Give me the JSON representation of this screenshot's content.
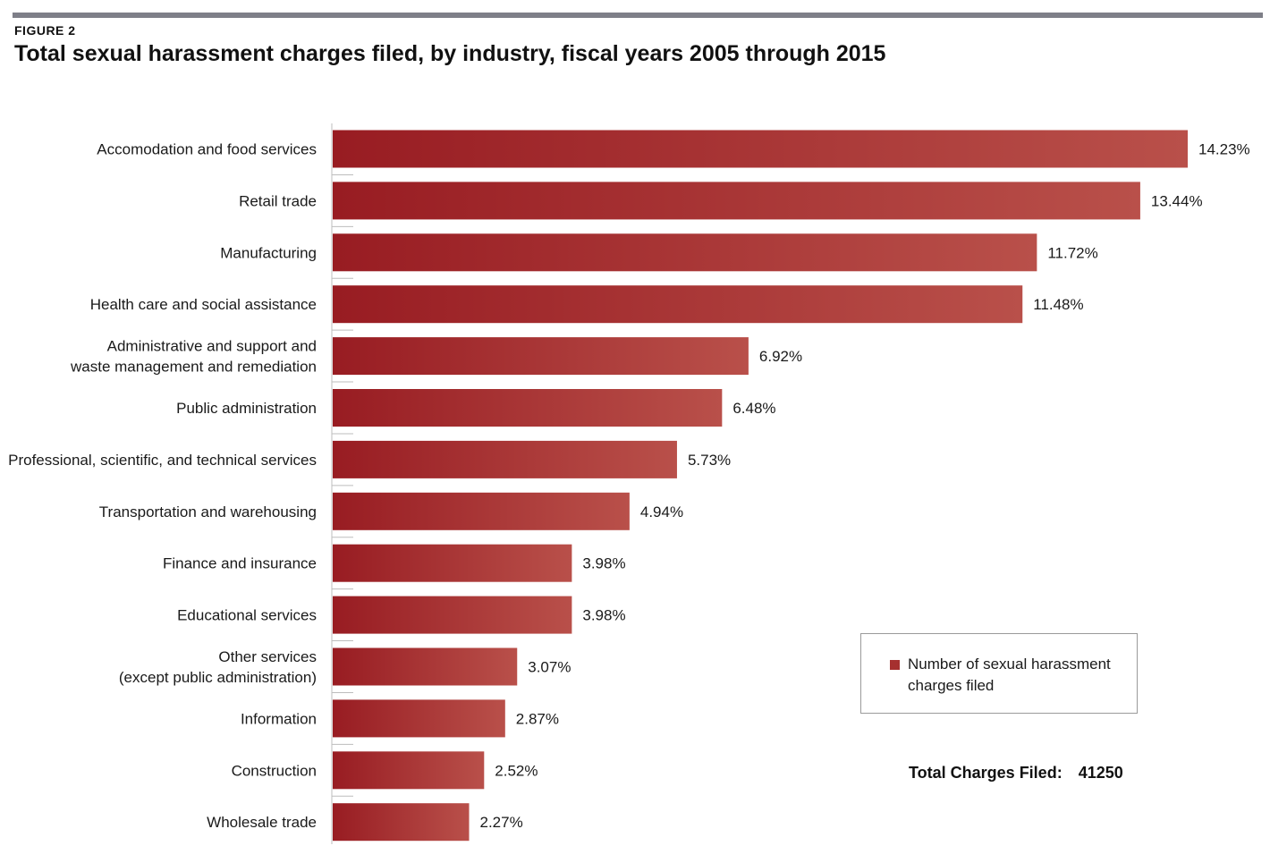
{
  "header": {
    "figure_label": "FIGURE 2"
  },
  "chart_data": {
    "type": "bar",
    "orientation": "horizontal",
    "title": "Total sexual harassment charges filed, by industry, fiscal years 2005 through 2015",
    "categories": [
      [
        "Accomodation and food services"
      ],
      [
        "Retail trade"
      ],
      [
        "Manufacturing"
      ],
      [
        "Health care and social assistance"
      ],
      [
        "Administrative and support and",
        "waste management and remediation"
      ],
      [
        "Public administration"
      ],
      [
        "Professional, scientific, and technical services"
      ],
      [
        "Transportation and warehousing"
      ],
      [
        "Finance and insurance"
      ],
      [
        "Educational services"
      ],
      [
        "Other services",
        "(except public administration)"
      ],
      [
        "Information"
      ],
      [
        "Construction"
      ],
      [
        "Wholesale trade"
      ]
    ],
    "values": [
      14.23,
      13.44,
      11.72,
      11.48,
      6.92,
      6.48,
      5.73,
      4.94,
      3.98,
      3.98,
      3.07,
      2.87,
      2.52,
      2.27
    ],
    "value_labels": [
      "14.23%",
      "13.44%",
      "11.72%",
      "11.48%",
      "6.92%",
      "6.48%",
      "5.73%",
      "4.94%",
      "3.98%",
      "3.98%",
      "3.07%",
      "2.87%",
      "2.52%",
      "2.27%"
    ],
    "unit": "%",
    "xlim": [
      0,
      14.23
    ],
    "grid": false,
    "bar_color_dark": "#981c22",
    "bar_color_light": "#b9504a",
    "legend": {
      "position": "bottom-right",
      "entries": [
        {
          "name": "Number of sexual harassment charges filed",
          "color": "#a6302f"
        }
      ]
    }
  },
  "legend_text": "Number of sexual harassment charges filed",
  "summary": {
    "total_label": "Total Charges Filed:",
    "total_value": "41250"
  },
  "colors": {
    "top_rule": "#7e7f88",
    "axis_line": "#bdbdbd"
  }
}
